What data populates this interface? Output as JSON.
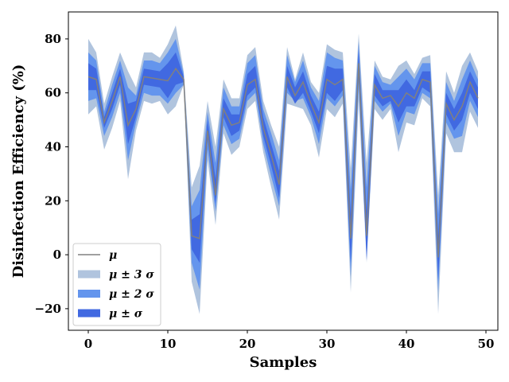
{
  "chart_data": {
    "type": "area",
    "xlabel": "Samples",
    "ylabel": "Disinfection Efficiency (%)",
    "xlim": [
      -2.5,
      51.5
    ],
    "ylim": [
      -28,
      90
    ],
    "xticks": [
      0,
      10,
      20,
      30,
      40,
      50
    ],
    "yticks": [
      -20,
      0,
      20,
      40,
      60,
      80
    ],
    "xtick_labels": [
      "0",
      "10",
      "20",
      "30",
      "40",
      "50"
    ],
    "ytick_labels": [
      "−20",
      "0",
      "20",
      "40",
      "60",
      "80"
    ],
    "legend_placement": "lower-left",
    "grid": false,
    "x": [
      0,
      1,
      2,
      3,
      4,
      5,
      6,
      7,
      8,
      9,
      10,
      11,
      12,
      13,
      14,
      15,
      16,
      17,
      18,
      19,
      20,
      21,
      22,
      23,
      24,
      25,
      26,
      27,
      28,
      29,
      30,
      31,
      32,
      33,
      34,
      35,
      36,
      37,
      38,
      39,
      40,
      41,
      42,
      43,
      44,
      45,
      46,
      47,
      48,
      49
    ],
    "series": [
      {
        "name": "μ",
        "color": "#808080",
        "values": [
          66,
          65,
          49,
          57,
          66,
          48,
          54,
          66,
          65.5,
          65,
          64.5,
          69,
          65,
          7,
          6,
          46,
          22,
          54,
          48,
          49,
          63,
          65,
          47,
          37,
          26,
          66,
          59,
          64,
          56,
          49,
          65,
          63,
          65,
          6,
          71,
          7,
          63,
          58,
          59,
          55,
          60,
          58,
          65,
          64,
          -1,
          56,
          50,
          55,
          64,
          58
        ]
      },
      {
        "name": "μ ± 3 σ",
        "color": "#b0c4de",
        "sigma": 3,
        "upper": [
          80,
          75,
          56,
          66,
          75,
          68,
          62,
          75,
          75,
          73,
          78,
          85,
          68,
          25,
          33,
          57,
          40,
          65,
          58,
          58,
          74,
          77,
          57,
          48,
          40,
          77,
          65,
          75,
          64,
          60,
          78,
          76,
          75,
          32,
          82,
          34,
          72,
          66,
          65,
          70,
          72,
          67,
          73,
          74,
          22,
          68,
          60,
          70,
          75,
          68
        ],
        "lower": [
          52,
          55,
          39,
          47,
          57,
          28,
          46,
          57,
          56,
          57,
          52,
          55,
          63,
          -10,
          -22,
          35,
          11,
          45,
          37,
          40,
          54,
          57,
          38,
          25,
          13,
          56,
          55,
          54,
          48,
          36,
          54,
          51,
          56,
          -14,
          57,
          -3,
          54,
          50,
          54,
          38,
          49,
          48,
          58,
          55,
          -22,
          45,
          38,
          38,
          53,
          47
        ]
      },
      {
        "name": "μ ± 2 σ",
        "color": "#6495ed",
        "sigma": 2,
        "upper": [
          75,
          72,
          53,
          63,
          72,
          62,
          59,
          72,
          72,
          71,
          75,
          80,
          67,
          18,
          24,
          53,
          34,
          62,
          55,
          55,
          71,
          74,
          54,
          45,
          35,
          74,
          64,
          72,
          62,
          57,
          75,
          73,
          72,
          24,
          79,
          25,
          70,
          64,
          63,
          66,
          69,
          65,
          71,
          71,
          15,
          64,
          57,
          65,
          72,
          65
        ],
        "lower": [
          57,
          58,
          44,
          51,
          60,
          35,
          49,
          60,
          59,
          59,
          56,
          60,
          63,
          -3,
          -13,
          39,
          16,
          48,
          41,
          43,
          57,
          60,
          41,
          29,
          18,
          60,
          57,
          58,
          51,
          41,
          58,
          55,
          59,
          -8,
          63,
          -1,
          57,
          53,
          56,
          44,
          53,
          52,
          60,
          58,
          -14,
          49,
          43,
          44,
          57,
          51
        ]
      },
      {
        "name": "μ ±  σ",
        "color": "#4169e1",
        "sigma": 1,
        "upper": [
          71,
          69,
          51,
          60,
          69,
          56,
          57,
          69,
          68.5,
          68,
          71,
          75,
          66,
          13,
          15,
          50,
          28,
          58,
          52,
          52,
          67,
          70,
          51,
          41,
          31,
          70,
          62,
          68,
          59,
          53,
          70,
          69,
          69,
          15,
          76,
          16,
          67,
          61,
          61,
          61,
          65,
          61,
          68,
          68,
          7,
          60,
          54,
          60,
          68,
          62
        ],
        "lower": [
          61,
          61,
          47,
          54,
          63,
          41,
          51,
          63,
          62.5,
          62,
          58,
          63,
          64,
          2,
          -3,
          43,
          19,
          51,
          44,
          46,
          59,
          62,
          44,
          33,
          21,
          62,
          56,
          60,
          53,
          45,
          60,
          57,
          61,
          -3,
          66,
          -2,
          59,
          55,
          57,
          49,
          55,
          55,
          62,
          60,
          -9,
          52,
          46,
          50,
          60,
          54
        ]
      }
    ]
  }
}
